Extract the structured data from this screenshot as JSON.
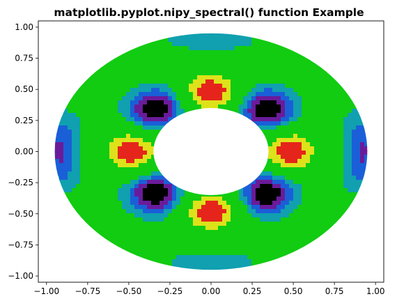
{
  "chart_data": {
    "type": "filled-contour",
    "title": "matplotlib.pyplot.nipy_spectral() function Example",
    "colormap": "nipy_spectral",
    "xlabel": "",
    "ylabel": "",
    "xlim": [
      -1.05,
      1.05
    ],
    "ylim": [
      -1.05,
      1.05
    ],
    "x_ticks": [
      -1.0,
      -0.75,
      -0.5,
      -0.25,
      0.0,
      0.25,
      0.5,
      0.75,
      1.0
    ],
    "y_ticks": [
      -1.0,
      -0.75,
      -0.5,
      -0.25,
      0.0,
      0.25,
      0.5,
      0.75,
      1.0
    ],
    "x_tick_labels": [
      "−1.00",
      "−0.75",
      "−0.50",
      "−0.25",
      "0.00",
      "0.25",
      "0.50",
      "0.75",
      "1.00"
    ],
    "y_tick_labels": [
      "−1.00",
      "−0.75",
      "−0.50",
      "−0.25",
      "0.00",
      "0.25",
      "0.50",
      "0.75",
      "1.00"
    ],
    "annulus": {
      "inner_radius": 0.35,
      "outer_radius": 0.95
    },
    "grid": false,
    "legend": "none",
    "color_levels": [
      "#000000",
      "#6a1b9a",
      "#1a5fd8",
      "#10a0b0",
      "#11cc11",
      "#dde21a",
      "#e5251b",
      "#f2f2f2"
    ]
  }
}
